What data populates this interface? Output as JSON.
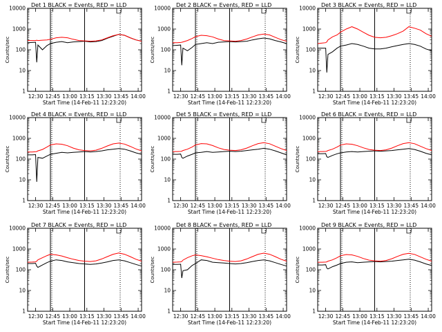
{
  "chart_data": {
    "type": "line",
    "layout": "3x3 grid",
    "grid": false,
    "y_scale": "log",
    "ylim": [
      1,
      10000
    ],
    "yticks": [
      "1",
      "10",
      "100",
      "1000",
      "10000"
    ],
    "ylabel": "Counts/sec",
    "xlabel": "Start Time (14-Feb-11 12:23:20)",
    "xlim_minutes_after_start": [
      0,
      100
    ],
    "xticks": [
      "12:30",
      "12:45",
      "13:00",
      "13:15",
      "13:30",
      "13:45",
      "14:00"
    ],
    "colors": {
      "events": "#000000",
      "lld": "#ff0000"
    },
    "markers": {
      "solid_vertical_lines": [
        "12:43",
        "13:13"
      ],
      "dotted_vertical_lines": [
        "12:43",
        "13:43"
      ],
      "bracket_top": "13:43"
    },
    "panels": [
      {
        "title": "Det 1  BLACK = Events, RED = LLD",
        "x": [
          "12:23",
          "12:27",
          "12:30",
          "12:31",
          "12:32",
          "12:36",
          "12:40",
          "12:43",
          "12:48",
          "12:53",
          "12:58",
          "13:03",
          "13:08",
          "13:13",
          "13:18",
          "13:23",
          "13:28",
          "13:33",
          "13:38",
          "13:43",
          "13:48",
          "13:53",
          "13:58",
          "14:03"
        ],
        "series": [
          {
            "values": [
              220,
              225,
              230,
              25,
              170,
              100,
              160,
              200,
              230,
              250,
              220,
              240,
              250,
              260,
              240,
              250,
              280,
              360,
              450,
              560,
              500,
              380,
              300,
              260
            ]
          },
          {
            "values": [
              280,
              280,
              280,
              290,
              280,
              290,
              300,
              320,
              380,
              400,
              380,
              320,
              280,
              270,
              260,
              270,
              300,
              380,
              480,
              550,
              500,
              380,
              300,
              260
            ]
          }
        ]
      },
      {
        "title": "Det 2  BLACK = Events, RED = LLD",
        "x": [
          "12:23",
          "12:27",
          "12:30",
          "12:31",
          "12:32",
          "12:36",
          "12:40",
          "12:43",
          "12:48",
          "12:53",
          "12:58",
          "13:03",
          "13:08",
          "13:13",
          "13:18",
          "13:23",
          "13:28",
          "13:33",
          "13:38",
          "13:43",
          "13:48",
          "13:53",
          "13:58",
          "14:03"
        ],
        "series": [
          {
            "values": [
              160,
              165,
              170,
              18,
              120,
              90,
              130,
              180,
              200,
              220,
              200,
              230,
              240,
              250,
              240,
              250,
              260,
              300,
              340,
              370,
              340,
              280,
              240,
              200
            ]
          },
          {
            "values": [
              220,
              220,
              225,
              230,
              240,
              280,
              350,
              430,
              500,
              480,
              420,
              330,
              280,
              270,
              260,
              280,
              330,
              420,
              520,
              570,
              520,
              400,
              310,
              260
            ]
          }
        ]
      },
      {
        "title": "Det 3  BLACK = Events, RED = LLD",
        "x": [
          "12:23",
          "12:27",
          "12:30",
          "12:31",
          "12:32",
          "12:36",
          "12:40",
          "12:43",
          "12:48",
          "12:53",
          "12:58",
          "13:03",
          "13:08",
          "13:13",
          "13:18",
          "13:23",
          "13:28",
          "13:33",
          "13:38",
          "13:43",
          "13:48",
          "13:53",
          "13:58",
          "14:03"
        ],
        "series": [
          {
            "values": [
              120,
              120,
              120,
              8,
              60,
              80,
              120,
              150,
              170,
              200,
              180,
              150,
              120,
              110,
              110,
              120,
              140,
              160,
              180,
              200,
              180,
              150,
              110,
              90
            ]
          },
          {
            "values": [
              200,
              210,
              220,
              240,
              300,
              420,
              520,
              700,
              1000,
              1300,
              1000,
              700,
              500,
              400,
              380,
              400,
              480,
              600,
              800,
              1300,
              1100,
              900,
              600,
              450
            ]
          }
        ]
      },
      {
        "title": "Det 4  BLACK = Events, RED = LLD",
        "x": [
          "12:23",
          "12:27",
          "12:30",
          "12:31",
          "12:32",
          "12:36",
          "12:40",
          "12:43",
          "12:48",
          "12:53",
          "12:58",
          "13:03",
          "13:08",
          "13:13",
          "13:18",
          "13:23",
          "13:28",
          "13:33",
          "13:38",
          "13:43",
          "13:48",
          "13:53",
          "13:58",
          "14:03"
        ],
        "series": [
          {
            "values": [
              160,
              160,
              165,
              8,
              120,
              110,
              140,
              170,
              190,
              210,
              200,
              210,
              220,
              230,
              220,
              230,
              250,
              280,
              300,
              320,
              300,
              250,
              200,
              170
            ]
          },
          {
            "values": [
              220,
              220,
              225,
              230,
              250,
              290,
              380,
              480,
              540,
              520,
              440,
              340,
              280,
              260,
              250,
              270,
              330,
              430,
              540,
              590,
              530,
              410,
              310,
              250
            ]
          }
        ]
      },
      {
        "title": "Det 5  BLACK = Events, RED = LLD",
        "x": [
          "12:23",
          "12:27",
          "12:30",
          "12:31",
          "12:32",
          "12:36",
          "12:40",
          "12:43",
          "12:48",
          "12:53",
          "12:58",
          "13:03",
          "13:08",
          "13:13",
          "13:18",
          "13:23",
          "13:28",
          "13:33",
          "13:38",
          "13:43",
          "13:48",
          "13:53",
          "13:58",
          "14:03"
        ],
        "series": [
          {
            "values": [
              170,
              170,
              175,
              120,
              110,
              140,
              170,
              200,
              210,
              230,
              210,
              220,
              230,
              240,
              230,
              240,
              260,
              280,
              300,
              330,
              300,
              250,
              200,
              160
            ]
          },
          {
            "values": [
              230,
              230,
              235,
              240,
              260,
              300,
              380,
              480,
              560,
              540,
              450,
              350,
              290,
              270,
              260,
              280,
              340,
              440,
              560,
              620,
              550,
              420,
              320,
              260
            ]
          }
        ]
      },
      {
        "title": "Det 6  BLACK = Events, RED = LLD",
        "x": [
          "12:23",
          "12:27",
          "12:30",
          "12:31",
          "12:32",
          "12:36",
          "12:40",
          "12:43",
          "12:48",
          "12:53",
          "12:58",
          "13:03",
          "13:08",
          "13:13",
          "13:18",
          "13:23",
          "13:28",
          "13:33",
          "13:38",
          "13:43",
          "13:48",
          "13:53",
          "13:58",
          "14:03"
        ],
        "series": [
          {
            "values": [
              180,
              180,
              185,
              130,
              120,
              150,
              180,
              200,
              220,
              230,
              220,
              230,
              240,
              250,
              240,
              250,
              260,
              280,
              300,
              320,
              290,
              240,
              190,
              160
            ]
          },
          {
            "values": [
              230,
              230,
              235,
              240,
              260,
              300,
              380,
              470,
              540,
              520,
              440,
              350,
              290,
              270,
              260,
              280,
              340,
              440,
              560,
              620,
              550,
              420,
              320,
              260
            ]
          }
        ]
      },
      {
        "title": "Det 7  BLACK = Events, RED = LLD",
        "x": [
          "12:23",
          "12:27",
          "12:30",
          "12:31",
          "12:32",
          "12:36",
          "12:40",
          "12:43",
          "12:48",
          "12:53",
          "12:58",
          "13:03",
          "13:08",
          "13:13",
          "13:18",
          "13:23",
          "13:28",
          "13:33",
          "13:38",
          "13:43",
          "13:48",
          "13:53",
          "13:58",
          "14:03"
        ],
        "series": [
          {
            "values": [
              200,
              200,
              205,
              150,
              130,
              170,
              220,
              260,
              300,
              280,
              240,
              220,
              200,
              190,
              180,
              190,
              210,
              240,
              280,
              300,
              270,
              220,
              180,
              150
            ]
          },
          {
            "values": [
              230,
              235,
              240,
              260,
              300,
              380,
              480,
              560,
              520,
              460,
              380,
              320,
              280,
              260,
              250,
              270,
              330,
              430,
              560,
              640,
              560,
              430,
              320,
              260
            ]
          }
        ]
      },
      {
        "title": "Det 8  BLACK = Events, RED = LLD",
        "x": [
          "12:23",
          "12:27",
          "12:30",
          "12:31",
          "12:32",
          "12:36",
          "12:40",
          "12:43",
          "12:48",
          "12:53",
          "12:58",
          "13:03",
          "13:08",
          "13:13",
          "13:18",
          "13:23",
          "13:28",
          "13:33",
          "13:38",
          "13:43",
          "13:48",
          "13:53",
          "13:58",
          "14:03"
        ],
        "series": [
          {
            "values": [
              180,
              180,
              185,
              40,
              90,
              100,
              160,
              200,
              300,
              280,
              230,
              220,
              210,
              200,
              190,
              200,
              220,
              250,
              280,
              300,
              270,
              220,
              180,
              150
            ]
          },
          {
            "values": [
              230,
              235,
              240,
              250,
              290,
              380,
              470,
              520,
              480,
              420,
              360,
              310,
              280,
              260,
              250,
              270,
              330,
              430,
              560,
              630,
              560,
              430,
              320,
              260
            ]
          }
        ]
      },
      {
        "title": "Det 9  BLACK = Events, RED = LLD",
        "x": [
          "12:23",
          "12:27",
          "12:30",
          "12:31",
          "12:32",
          "12:36",
          "12:40",
          "12:43",
          "12:48",
          "12:53",
          "12:58",
          "13:03",
          "13:08",
          "13:13",
          "13:18",
          "13:23",
          "13:28",
          "13:33",
          "13:38",
          "13:43",
          "13:48",
          "13:53",
          "13:58",
          "14:03"
        ],
        "series": [
          {
            "values": [
              170,
              170,
              175,
              120,
              110,
              140,
              170,
              200,
              230,
              240,
              220,
              230,
              240,
              250,
              240,
              250,
              260,
              280,
              300,
              320,
              290,
              240,
              190,
              160
            ]
          },
          {
            "values": [
              230,
              230,
              235,
              240,
              260,
              300,
              380,
              470,
              540,
              520,
              440,
              350,
              290,
              270,
              260,
              280,
              340,
              440,
              560,
              620,
              550,
              420,
              320,
              260
            ]
          }
        ]
      }
    ]
  }
}
